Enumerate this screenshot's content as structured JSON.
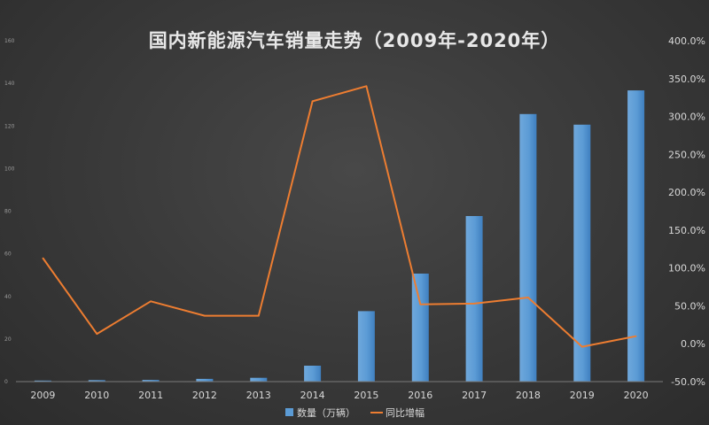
{
  "chart_data": {
    "type": "bar",
    "title": "国内新能源汽车销量走势（2009年-2020年）",
    "categories": [
      "2009",
      "2010",
      "2011",
      "2012",
      "2013",
      "2014",
      "2015",
      "2016",
      "2017",
      "2018",
      "2019",
      "2020"
    ],
    "series": [
      {
        "name": "数量（万辆）",
        "type": "bar",
        "axis": "left",
        "color": "#5b9bd5",
        "values": [
          0.5,
          0.7,
          0.8,
          1.3,
          1.8,
          7.5,
          33.1,
          50.7,
          77.7,
          125.6,
          120.6,
          136.7
        ]
      },
      {
        "name": "同比增幅",
        "type": "line",
        "axis": "right",
        "color": "#ed7d31",
        "values": [
          113,
          13,
          56,
          37,
          37,
          320,
          340,
          52,
          53,
          61,
          -4,
          10
        ]
      }
    ],
    "y_left": {
      "ticks": [
        "0",
        "20",
        "40",
        "60",
        "80",
        "100",
        "120",
        "140",
        "160"
      ],
      "ylim": [
        0,
        160
      ]
    },
    "y_right": {
      "ticks": [
        "-50.0%",
        "0.0%",
        "50.0%",
        "100.0%",
        "150.0%",
        "200.0%",
        "250.0%",
        "300.0%",
        "350.0%",
        "400.0%"
      ],
      "ylim": [
        -50,
        400
      ]
    },
    "grid": false,
    "legend_position": "bottom"
  }
}
